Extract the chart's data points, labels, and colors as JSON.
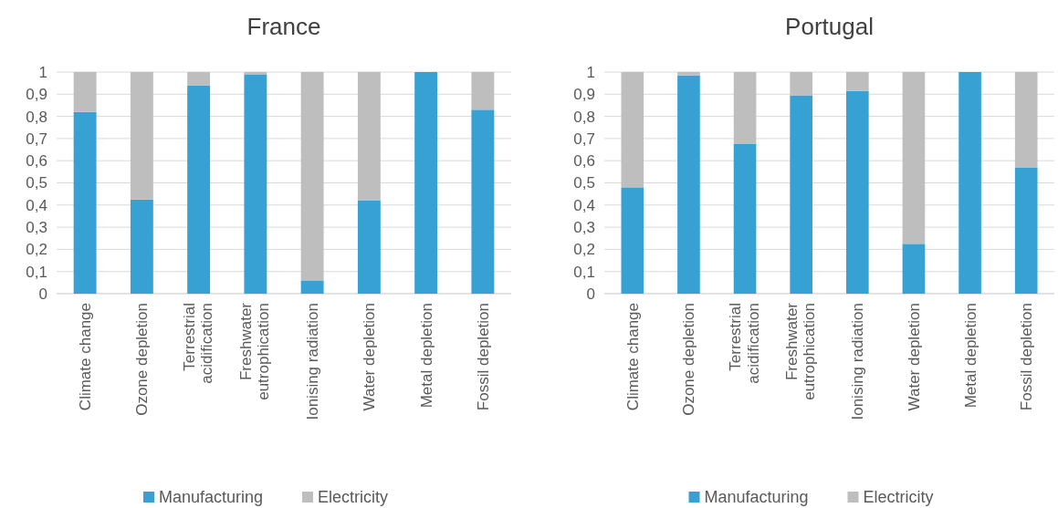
{
  "chart_data": [
    {
      "type": "bar",
      "title": "France",
      "stacked": true,
      "grid": "y",
      "legend": "bottom",
      "categories": [
        "Climate change",
        "Ozone depletion",
        "Terrestrial acidification",
        "Freshwater eutrophication",
        "Ionising radiation",
        "Water depletion",
        "Metal depletion",
        "Fossil depletion"
      ],
      "series": [
        {
          "name": "Manufacturing",
          "color": "#38a1d4",
          "values": [
            0.82,
            0.425,
            0.94,
            0.99,
            0.06,
            0.42,
            1.0,
            0.83
          ]
        },
        {
          "name": "Electricity",
          "color": "#bebebe",
          "values": [
            0.18,
            0.575,
            0.06,
            0.01,
            0.94,
            0.58,
            null,
            0.17
          ]
        }
      ],
      "ylim": [
        0,
        1
      ],
      "yticks": [
        {
          "value": 0,
          "label": "0"
        },
        {
          "value": 0.1,
          "label": "0,1"
        },
        {
          "value": 0.2,
          "label": "0,2"
        },
        {
          "value": 0.3,
          "label": "0,3"
        },
        {
          "value": 0.4,
          "label": "0,4"
        },
        {
          "value": 0.5,
          "label": "0,5"
        },
        {
          "value": 0.6,
          "label": "0,6"
        },
        {
          "value": 0.7,
          "label": "0,7"
        },
        {
          "value": 0.8,
          "label": "0,8"
        },
        {
          "value": 0.9,
          "label": "0,9"
        },
        {
          "value": 1,
          "label": "1"
        }
      ]
    },
    {
      "type": "bar",
      "title": "Portugal",
      "stacked": true,
      "grid": "y",
      "legend": "bottom",
      "categories": [
        "Climate change",
        "Ozone depletion",
        "Terrestrial acidification",
        "Freshwater eutrophication",
        "Ionising radiation",
        "Water depletion",
        "Metal depletion",
        "Fossil depletion"
      ],
      "series": [
        {
          "name": "Manufacturing",
          "color": "#38a1d4",
          "values": [
            0.48,
            0.985,
            0.675,
            0.895,
            0.915,
            0.225,
            1.0,
            0.57
          ]
        },
        {
          "name": "Electricity",
          "color": "#bebebe",
          "values": [
            0.52,
            0.015,
            0.325,
            0.105,
            0.085,
            0.775,
            0.0,
            0.43
          ]
        }
      ],
      "ylim": [
        0,
        1
      ],
      "yticks": [
        {
          "value": 0,
          "label": "0"
        },
        {
          "value": 0.1,
          "label": "0,1"
        },
        {
          "value": 0.2,
          "label": "0,2"
        },
        {
          "value": 0.3,
          "label": "0,3"
        },
        {
          "value": 0.4,
          "label": "0,4"
        },
        {
          "value": 0.5,
          "label": "0,5"
        },
        {
          "value": 0.6,
          "label": "0,6"
        },
        {
          "value": 0.7,
          "label": "0,7"
        },
        {
          "value": 0.8,
          "label": "0,8"
        },
        {
          "value": 0.9,
          "label": "0,9"
        },
        {
          "value": 1,
          "label": "1"
        }
      ]
    }
  ]
}
